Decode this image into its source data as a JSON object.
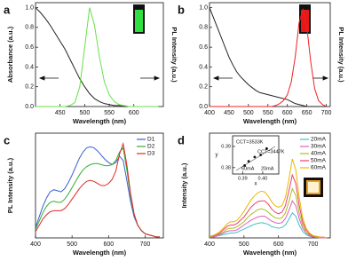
{
  "chart_data": [
    {
      "type": "line",
      "panel_label": "a",
      "xlabel": "Wavelength (nm)",
      "ylabel": "Absorbance (a.u.)",
      "y2label": "PL Intensity (a.u.)",
      "x": [
        400,
        410,
        420,
        430,
        440,
        450,
        460,
        470,
        480,
        490,
        500,
        510,
        520,
        530,
        540,
        550,
        560,
        570,
        580,
        590,
        600,
        610,
        620,
        630,
        640,
        650
      ],
      "xlim": [
        400,
        660
      ],
      "xticks": [
        450,
        500,
        550,
        600
      ],
      "ylim": [
        0,
        1.05
      ],
      "yticks": [
        {
          "value": 0,
          "label": "0.0"
        },
        0.2,
        0.4,
        0.6,
        0.8,
        {
          "value": 1,
          "label": "1.0"
        }
      ],
      "series": [
        {
          "color": "#222222",
          "values": [
            1.0,
            0.95,
            0.89,
            0.82,
            0.74,
            0.66,
            0.58,
            0.48,
            0.38,
            0.28,
            0.2,
            0.13,
            0.08,
            0.05,
            0.03,
            0.02,
            0.01,
            0.01,
            0,
            0,
            0,
            0,
            0,
            0,
            0,
            0
          ]
        },
        {
          "color": "#66e04a",
          "values": [
            0,
            0,
            0,
            0,
            0,
            0,
            0,
            0.01,
            0.04,
            0.2,
            0.6,
            1.0,
            0.82,
            0.5,
            0.25,
            0.12,
            0.05,
            0.02,
            0.01,
            0,
            0,
            0,
            0,
            0,
            0,
            0
          ]
        }
      ]
    },
    {
      "type": "line",
      "panel_label": "b",
      "xlabel": "Wavelength (nm)",
      "y2label": "PL Intensity (a.u.)",
      "x": [
        400,
        410,
        420,
        430,
        440,
        450,
        460,
        470,
        480,
        490,
        500,
        510,
        520,
        530,
        540,
        550,
        560,
        570,
        580,
        590,
        600,
        610,
        620,
        630,
        640,
        650,
        660,
        670,
        680,
        690,
        700
      ],
      "xlim": [
        400,
        710
      ],
      "xticks": [
        400,
        450,
        500,
        550,
        600,
        650,
        700
      ],
      "ylim": [
        0,
        1.05
      ],
      "yticks": [
        {
          "value": 0,
          "label": "0.0"
        },
        0.2,
        0.4,
        0.6,
        0.8,
        {
          "value": 1,
          "label": "1.0"
        }
      ],
      "series": [
        {
          "color": "#222222",
          "values": [
            1.0,
            0.9,
            0.8,
            0.7,
            0.6,
            0.5,
            0.42,
            0.35,
            0.3,
            0.26,
            0.22,
            0.19,
            0.16,
            0.14,
            0.13,
            0.12,
            0.11,
            0.1,
            0.09,
            0.08,
            0.07,
            0.05,
            0.03,
            0.02,
            0.01,
            0,
            0,
            0,
            0,
            0,
            0
          ]
        },
        {
          "color": "#f02020",
          "values": [
            0,
            0,
            0,
            0,
            0,
            0,
            0,
            0,
            0,
            0,
            0,
            0,
            0,
            0,
            0,
            0,
            0,
            0.01,
            0.03,
            0.06,
            0.12,
            0.25,
            0.5,
            0.85,
            0.98,
            0.8,
            0.45,
            0.18,
            0.06,
            0.02,
            0
          ]
        }
      ]
    },
    {
      "type": "line",
      "panel_label": "c",
      "xlabel": "Wavelength (nm)",
      "ylabel": "PL Intensity (a.u.)",
      "legend": "upper right",
      "x": [
        400,
        410,
        420,
        430,
        440,
        450,
        460,
        470,
        480,
        490,
        500,
        510,
        520,
        530,
        540,
        550,
        560,
        570,
        580,
        590,
        600,
        610,
        620,
        630,
        640,
        650,
        660,
        670,
        680,
        690,
        700,
        710,
        720,
        730,
        740
      ],
      "xlim": [
        400,
        750
      ],
      "xticks": [
        400,
        500,
        600,
        700
      ],
      "ylim": [
        0,
        1
      ],
      "series": [
        {
          "name": "D1",
          "color": "#3a5fd0",
          "values": [
            0.1,
            0.2,
            0.3,
            0.38,
            0.44,
            0.46,
            0.45,
            0.44,
            0.47,
            0.53,
            0.6,
            0.68,
            0.76,
            0.82,
            0.86,
            0.87,
            0.86,
            0.83,
            0.79,
            0.75,
            0.72,
            0.7,
            0.72,
            0.78,
            0.74,
            0.55,
            0.35,
            0.2,
            0.12,
            0.07,
            0.04,
            0.03,
            0.02,
            0.01,
            0.01
          ]
        },
        {
          "name": "D2",
          "color": "#30b030",
          "values": [
            0.08,
            0.16,
            0.24,
            0.3,
            0.34,
            0.35,
            0.34,
            0.34,
            0.37,
            0.42,
            0.48,
            0.54,
            0.6,
            0.65,
            0.68,
            0.7,
            0.71,
            0.71,
            0.7,
            0.69,
            0.69,
            0.7,
            0.74,
            0.82,
            0.86,
            0.65,
            0.4,
            0.22,
            0.12,
            0.07,
            0.04,
            0.03,
            0.02,
            0.01,
            0.01
          ]
        },
        {
          "name": "D3",
          "color": "#e02828",
          "values": [
            0.06,
            0.12,
            0.18,
            0.22,
            0.25,
            0.26,
            0.26,
            0.26,
            0.28,
            0.32,
            0.37,
            0.42,
            0.47,
            0.51,
            0.54,
            0.55,
            0.54,
            0.52,
            0.5,
            0.5,
            0.52,
            0.56,
            0.64,
            0.8,
            0.9,
            0.7,
            0.43,
            0.23,
            0.12,
            0.07,
            0.04,
            0.03,
            0.02,
            0.01,
            0.01
          ]
        }
      ]
    },
    {
      "type": "line",
      "panel_label": "d",
      "xlabel": "Wavelength (nm)",
      "ylabel": "Intensity (a.u.)",
      "legend": "right",
      "x": [
        400,
        410,
        420,
        430,
        440,
        450,
        460,
        470,
        480,
        490,
        500,
        510,
        520,
        530,
        540,
        550,
        560,
        570,
        580,
        590,
        600,
        610,
        620,
        630,
        640,
        650,
        660,
        670,
        680,
        690,
        700,
        710,
        720,
        730,
        740
      ],
      "xlim": [
        400,
        750
      ],
      "xticks": [
        400,
        500,
        600,
        700
      ],
      "ylim": [
        0,
        1.3
      ],
      "series": [
        {
          "name": "20mA",
          "color": "#40c0c8",
          "values": [
            0.01,
            0.01,
            0.02,
            0.03,
            0.04,
            0.05,
            0.06,
            0.06,
            0.07,
            0.09,
            0.11,
            0.13,
            0.15,
            0.17,
            0.18,
            0.19,
            0.18,
            0.17,
            0.14,
            0.13,
            0.12,
            0.13,
            0.16,
            0.23,
            0.31,
            0.27,
            0.16,
            0.08,
            0.04,
            0.02,
            0.01,
            0.01,
            0,
            0,
            0
          ]
        },
        {
          "name": "30mA",
          "color": "#e060c0",
          "values": [
            0.01,
            0.01,
            0.02,
            0.04,
            0.06,
            0.08,
            0.09,
            0.09,
            0.1,
            0.13,
            0.16,
            0.19,
            0.22,
            0.24,
            0.26,
            0.27,
            0.27,
            0.24,
            0.21,
            0.19,
            0.18,
            0.19,
            0.24,
            0.34,
            0.46,
            0.4,
            0.24,
            0.12,
            0.06,
            0.03,
            0.01,
            0.01,
            0,
            0,
            0
          ]
        },
        {
          "name": "40mA",
          "color": "#a8c020",
          "values": [
            0.01,
            0.02,
            0.03,
            0.05,
            0.07,
            0.11,
            0.12,
            0.12,
            0.14,
            0.17,
            0.2,
            0.25,
            0.29,
            0.32,
            0.35,
            0.36,
            0.35,
            0.32,
            0.28,
            0.25,
            0.24,
            0.25,
            0.31,
            0.45,
            0.61,
            0.53,
            0.31,
            0.16,
            0.07,
            0.04,
            0.02,
            0.01,
            0.01,
            0.01,
            0
          ]
        },
        {
          "name": "50mA",
          "color": "#f04070",
          "values": [
            0.02,
            0.02,
            0.04,
            0.06,
            0.1,
            0.14,
            0.16,
            0.16,
            0.18,
            0.22,
            0.26,
            0.32,
            0.38,
            0.42,
            0.45,
            0.46,
            0.46,
            0.42,
            0.36,
            0.32,
            0.3,
            0.32,
            0.4,
            0.58,
            0.78,
            0.68,
            0.4,
            0.2,
            0.1,
            0.05,
            0.02,
            0.02,
            0.01,
            0.01,
            0
          ]
        },
        {
          "name": "60mA",
          "color": "#e8b800",
          "values": [
            0.02,
            0.03,
            0.05,
            0.08,
            0.12,
            0.17,
            0.2,
            0.2,
            0.22,
            0.27,
            0.33,
            0.4,
            0.47,
            0.52,
            0.56,
            0.58,
            0.57,
            0.52,
            0.45,
            0.4,
            0.38,
            0.4,
            0.5,
            0.72,
            0.98,
            0.85,
            0.5,
            0.25,
            0.12,
            0.06,
            0.03,
            0.02,
            0.01,
            0.01,
            0
          ]
        }
      ]
    },
    {
      "type": "scatter",
      "xlabel": "x",
      "ylabel": "y",
      "x": [
        0.391,
        0.393,
        0.396,
        0.399,
        0.402
      ],
      "xlim": [
        0.385,
        0.408
      ],
      "xticks": [
        0.39,
        {
          "value": 0.4,
          "label": "0.40"
        }
      ],
      "ylim": [
        0.377,
        0.395
      ],
      "yticks": [
        0.38,
        0.39
      ],
      "series": [
        {
          "color": "#111111",
          "values": [
            0.381,
            0.383,
            0.385,
            0.386,
            0.389
          ]
        }
      ],
      "annotations": [
        "CCT=3533K",
        "CCT=3447K",
        "60mA",
        "20mA"
      ]
    }
  ]
}
